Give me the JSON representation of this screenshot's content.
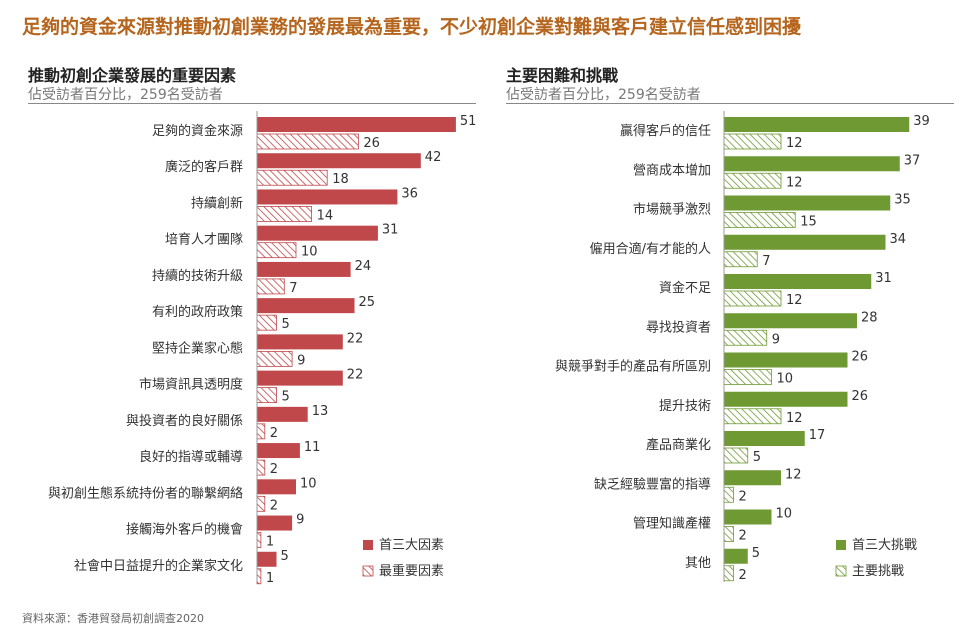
{
  "headline": "足夠的資金來源對推動初創業務的發展最為重要，不少初創企業對難與客戶建立信任感到困擾",
  "source": "資料來源：香港貿發局初創調查2020",
  "colors": {
    "headline": "#b5651d",
    "red": "#c0474a",
    "green": "#6f9a33"
  },
  "chart_data": [
    {
      "type": "bar",
      "orientation": "horizontal",
      "title": "推動初創企業發展的重要因素",
      "subtitle": "佔受訪者百分比，259名受訪者",
      "categories": [
        "足夠的資金來源",
        "廣泛的客戶群",
        "持續創新",
        "培育人才團隊",
        "持續的技術升級",
        "有利的政府政策",
        "堅持企業家心態",
        "市場資訊具透明度",
        "與投資者的良好關係",
        "良好的指導或輔導",
        "與初創生態系統持份者的聯繫網絡",
        "接觸海外客戶的機會",
        "社會中日益提升的企業家文化"
      ],
      "series": [
        {
          "name": "首三大因素",
          "style": "solid",
          "color": "#c0474a",
          "values": [
            51,
            42,
            36,
            31,
            24,
            25,
            22,
            22,
            13,
            11,
            10,
            9,
            5
          ]
        },
        {
          "name": "最重要因素",
          "style": "hatched",
          "color": "#c0474a",
          "values": [
            26,
            18,
            14,
            10,
            7,
            5,
            9,
            5,
            2,
            2,
            2,
            1,
            1
          ]
        }
      ],
      "legend": "bottom-right",
      "grid": false
    },
    {
      "type": "bar",
      "orientation": "horizontal",
      "title": "主要困難和挑戰",
      "subtitle": "佔受訪者百分比，259名受訪者",
      "categories": [
        "贏得客戶的信任",
        "營商成本增加",
        "市場競爭激烈",
        "僱用合適/有才能的人",
        "資金不足",
        "尋找投資者",
        "與競爭對手的產品有所區別",
        "提升技術",
        "產品商業化",
        "缺乏經驗豐富的指導",
        "管理知識產權",
        "其他"
      ],
      "series": [
        {
          "name": "首三大挑戰",
          "style": "solid",
          "color": "#6f9a33",
          "values": [
            39,
            37,
            35,
            34,
            31,
            28,
            26,
            26,
            17,
            12,
            10,
            5
          ]
        },
        {
          "name": "主要挑戰",
          "style": "hatched",
          "color": "#6f9a33",
          "values": [
            12,
            12,
            15,
            7,
            12,
            9,
            10,
            12,
            5,
            2,
            2,
            2
          ]
        }
      ],
      "legend": "bottom-right",
      "grid": false
    }
  ]
}
